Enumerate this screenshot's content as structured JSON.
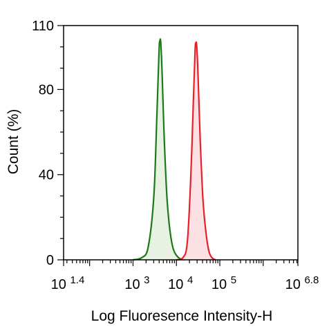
{
  "chart_data": {
    "type": "area",
    "title": "",
    "xlabel": "Log Fluoresence Intensity-H",
    "ylabel": "Count  (%)",
    "x_scale": "log",
    "xlim": [
      25.12,
      6309573
    ],
    "ylim": [
      0,
      110
    ],
    "grid": false,
    "legend": "none",
    "x_ticks": [
      {
        "base": "10",
        "exp": "1.4",
        "value": 25.12
      },
      {
        "base": "10",
        "exp": "3",
        "value": 1000
      },
      {
        "base": "10",
        "exp": "4",
        "value": 10000
      },
      {
        "base": "10",
        "exp": "5",
        "value": 100000
      },
      {
        "base": "10",
        "exp": "6.8",
        "value": 6309573
      }
    ],
    "y_ticks": [
      "0",
      "40",
      "80",
      "110"
    ],
    "y_tick_values": [
      0,
      40,
      80,
      110
    ],
    "colors": {
      "green": "#1a7a1a",
      "green_fill": "#e8f2e3",
      "red": "#e8202a",
      "red_fill": "#fbe1e3"
    },
    "series": [
      {
        "color": "green",
        "x": [
          1000,
          1585,
          2239,
          3020,
          3548,
          3981,
          4169,
          4365,
          4677,
          5248,
          6026,
          7079,
          8511,
          11220,
          15849
        ],
        "y": [
          0,
          1,
          6,
          30,
          68,
          98,
          103,
          102,
          88,
          57,
          30,
          14,
          5,
          1,
          0
        ]
      },
      {
        "color": "red",
        "x": [
          10000,
          14125,
          17783,
          21380,
          24547,
          26915,
          28184,
          29512,
          31623,
          35481,
          40738,
          47863,
          56234,
          66069,
          79433
        ],
        "y": [
          0,
          1,
          8,
          38,
          74,
          98,
          102,
          100,
          86,
          56,
          29,
          13,
          4,
          1,
          0
        ]
      }
    ]
  }
}
